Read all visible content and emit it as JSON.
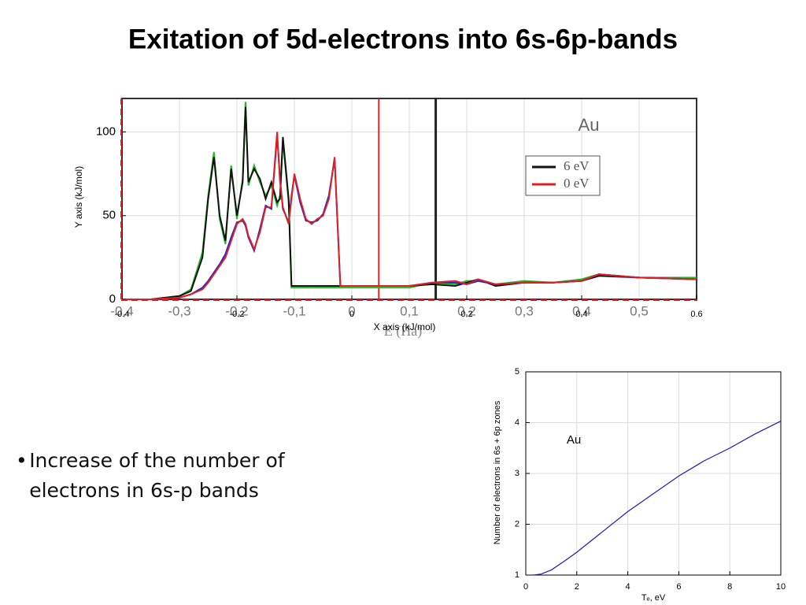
{
  "title": "Exitation of 5d-electrons into 6s-6p-bands",
  "bullets": [
    "Increase of the number of electrons in 6s-p bands"
  ],
  "chart_data": [
    {
      "type": "line",
      "xlabel": "X axis (kJ/mol)",
      "ylabel": "Y axis (kJ/mol)",
      "inner_xlabel": "E (Ha)",
      "annotation": "Au",
      "xlim": [
        -0.4,
        0.6
      ],
      "ylim": [
        0,
        120
      ],
      "xticks": [
        -0.4,
        -0.2,
        0,
        0.2,
        0.4,
        0.6
      ],
      "yticks": [
        0,
        50,
        100
      ],
      "secondary_xticks": [
        {
          "value": -0.4,
          "label": "-0,4"
        },
        {
          "value": -0.3,
          "label": "-0,3"
        },
        {
          "value": -0.2,
          "label": "-0,2"
        },
        {
          "value": -0.1,
          "label": "-0,1"
        },
        0,
        {
          "value": 0.1,
          "label": "0,1"
        },
        {
          "value": 0.2,
          "label": "0,2"
        },
        {
          "value": 0.3,
          "label": "0,3"
        },
        {
          "value": 0.4,
          "label": "0,4"
        },
        {
          "value": 0.5,
          "label": "0,5"
        }
      ],
      "grid": true,
      "legend": "upper right",
      "reference_lines": [
        {
          "x": 0.047,
          "color": "#e02020"
        },
        {
          "x": 0.146,
          "color": "#222222"
        }
      ],
      "x": [
        -0.4,
        -0.35,
        -0.3,
        -0.28,
        -0.26,
        -0.25,
        -0.24,
        -0.23,
        -0.22,
        -0.21,
        -0.2,
        -0.19,
        -0.185,
        -0.18,
        -0.17,
        -0.16,
        -0.15,
        -0.14,
        -0.13,
        -0.125,
        -0.12,
        -0.11,
        -0.105,
        -0.1,
        -0.09,
        -0.08,
        -0.07,
        -0.06,
        -0.05,
        -0.04,
        -0.03,
        -0.02,
        -0.01,
        0.05,
        0.1,
        0.14,
        0.18,
        0.2,
        0.22,
        0.25,
        0.3,
        0.35,
        0.4,
        0.43,
        0.5,
        0.6
      ],
      "series": [
        {
          "color": "#22bb22",
          "values": [
            0,
            0,
            2,
            6,
            28,
            62,
            88,
            48,
            33,
            80,
            48,
            72,
            118,
            68,
            80,
            70,
            62,
            68,
            56,
            62,
            95,
            58,
            7,
            7,
            7,
            7,
            7,
            7,
            7,
            7,
            7,
            7,
            7,
            7,
            7,
            10,
            9,
            11,
            11,
            9,
            11,
            10,
            12,
            15,
            13,
            13
          ]
        },
        {
          "name": "6 eV",
          "color": "#111111",
          "values": [
            0,
            0,
            2,
            5,
            25,
            60,
            85,
            50,
            35,
            78,
            50,
            70,
            115,
            70,
            78,
            72,
            60,
            70,
            58,
            60,
            97,
            60,
            8,
            8,
            8,
            8,
            8,
            8,
            8,
            8,
            8,
            8,
            8,
            8,
            8,
            9,
            8,
            10,
            12,
            8,
            10,
            10,
            11,
            14,
            13,
            12
          ]
        },
        {
          "color": "#2222dd",
          "values": [
            0,
            0,
            1,
            3,
            7,
            11,
            16,
            21,
            27,
            37,
            46,
            47,
            44,
            37,
            29,
            42,
            56,
            54,
            98,
            72,
            54,
            46,
            62,
            74,
            58,
            47,
            46,
            47,
            51,
            62,
            84,
            8,
            8,
            8,
            8,
            10,
            10,
            9,
            11,
            9,
            10,
            10,
            11,
            15,
            13,
            12
          ]
        },
        {
          "name": "0 eV",
          "color": "#e02020",
          "values": [
            0,
            0,
            1,
            3,
            6,
            10,
            15,
            20,
            25,
            35,
            45,
            48,
            45,
            38,
            30,
            40,
            55,
            55,
            100,
            70,
            55,
            45,
            60,
            75,
            60,
            48,
            45,
            48,
            50,
            60,
            85,
            8,
            8,
            8,
            8,
            10,
            11,
            9,
            12,
            9,
            10,
            10,
            11,
            15,
            13,
            12
          ]
        }
      ]
    },
    {
      "type": "line",
      "xlabel": "Tₑ,  eV",
      "ylabel": "Number of electrons in 6s + 6p zones",
      "annotation": "Au",
      "xlim": [
        0,
        10
      ],
      "ylim": [
        1,
        5
      ],
      "xticks": [
        0,
        2,
        4,
        6,
        8,
        10
      ],
      "yticks": [
        1,
        2,
        3,
        4,
        5
      ],
      "grid": true,
      "x": [
        0.3,
        0.6,
        1,
        1.5,
        2,
        3,
        4,
        5,
        6,
        7,
        8,
        9,
        10
      ],
      "series": [
        {
          "color": "#1a1acc",
          "values": [
            1,
            1.02,
            1.1,
            1.27,
            1.45,
            1.85,
            2.25,
            2.6,
            2.95,
            3.25,
            3.5,
            3.78,
            4.03
          ]
        }
      ]
    }
  ]
}
